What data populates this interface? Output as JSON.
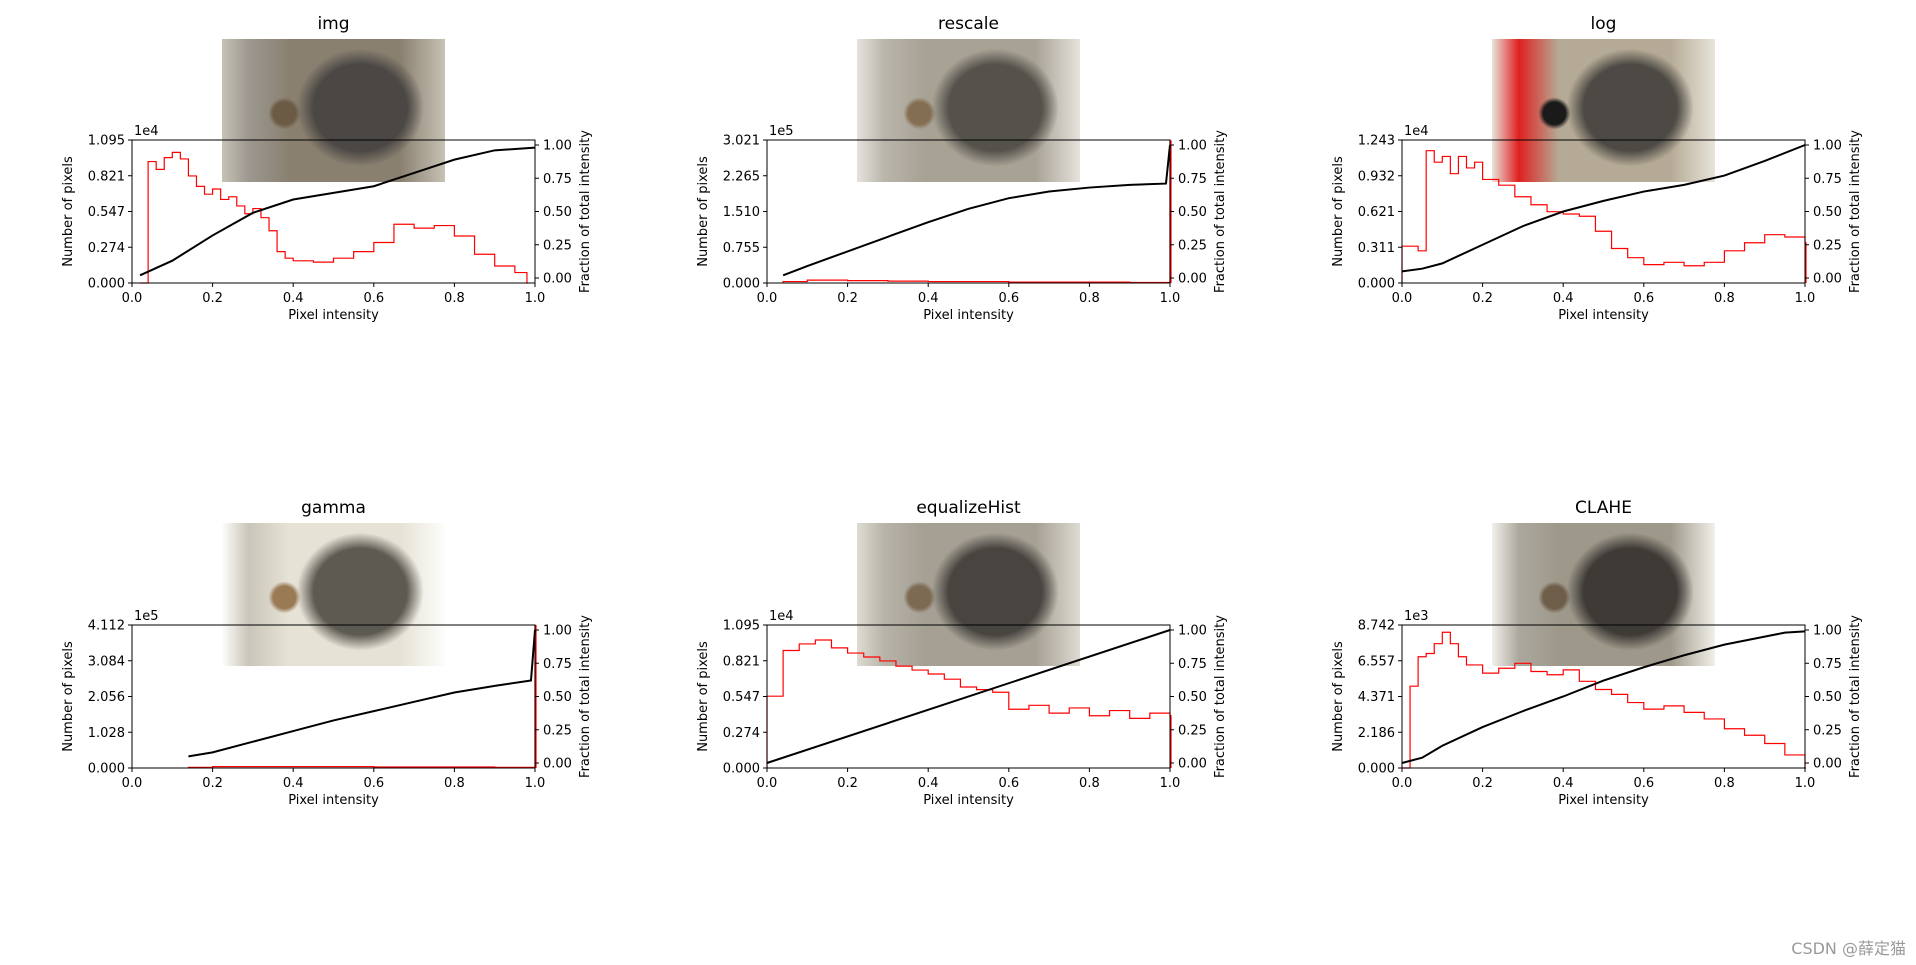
{
  "panels": [
    {
      "title": "img",
      "photo_palette": [
        "#8a8070",
        "#4a4744",
        "#c7c2b5",
        "#6b5a44",
        "#9c9890"
      ],
      "chart_data": {
        "type": "histogram",
        "xlabel": "Pixel intensity",
        "ylabel": "Number of pixels",
        "y2label": "Fraction of total intensity",
        "xlim": [
          0.0,
          1.0
        ],
        "xticks": [
          "0.0",
          "0.2",
          "0.4",
          "0.6",
          "0.8",
          "1.0"
        ],
        "ylim": [
          0,
          1.095
        ],
        "yticks": [
          "0.000",
          "0.274",
          "0.547",
          "0.821",
          "1.095"
        ],
        "yexponent": "1e4",
        "y2ticks": [
          "0.00",
          "0.25",
          "0.50",
          "0.75",
          "1.00"
        ],
        "hist": {
          "x": [
            0.02,
            0.04,
            0.06,
            0.08,
            0.1,
            0.12,
            0.14,
            0.16,
            0.18,
            0.2,
            0.22,
            0.24,
            0.26,
            0.28,
            0.3,
            0.32,
            0.34,
            0.36,
            0.38,
            0.4,
            0.45,
            0.5,
            0.55,
            0.6,
            0.65,
            0.7,
            0.75,
            0.8,
            0.85,
            0.9,
            0.95,
            0.98
          ],
          "y": [
            0.0,
            0.93,
            0.87,
            0.96,
            1.0,
            0.95,
            0.82,
            0.74,
            0.68,
            0.72,
            0.64,
            0.66,
            0.59,
            0.53,
            0.57,
            0.5,
            0.4,
            0.24,
            0.19,
            0.17,
            0.16,
            0.19,
            0.24,
            0.31,
            0.45,
            0.42,
            0.44,
            0.36,
            0.22,
            0.13,
            0.08,
            0.0
          ]
        },
        "cdf": {
          "x": [
            0.02,
            0.1,
            0.2,
            0.3,
            0.4,
            0.5,
            0.6,
            0.7,
            0.8,
            0.9,
            1.0
          ],
          "y": [
            0.02,
            0.13,
            0.32,
            0.49,
            0.59,
            0.64,
            0.69,
            0.79,
            0.89,
            0.96,
            0.98
          ]
        }
      }
    },
    {
      "title": "rescale",
      "photo_palette": [
        "#a8a295",
        "#55524c",
        "#e5e3dc",
        "#846e52",
        "#bab6ac"
      ],
      "chart_data": {
        "type": "histogram",
        "xlabel": "Pixel intensity",
        "ylabel": "Number of pixels",
        "y2label": "Fraction of total intensity",
        "xlim": [
          0.0,
          1.0
        ],
        "xticks": [
          "0.0",
          "0.2",
          "0.4",
          "0.6",
          "0.8",
          "1.0"
        ],
        "ylim": [
          0,
          3.021
        ],
        "yticks": [
          "0.000",
          "0.755",
          "1.510",
          "2.265",
          "3.021"
        ],
        "yexponent": "1e5",
        "y2ticks": [
          "0.00",
          "0.25",
          "0.50",
          "0.75",
          "1.00"
        ],
        "hist": {
          "x": [
            0.04,
            0.1,
            0.2,
            0.3,
            0.4,
            0.5,
            0.6,
            0.7,
            0.8,
            0.9,
            0.99,
            1.0
          ],
          "y": [
            0.03,
            0.06,
            0.05,
            0.04,
            0.03,
            0.03,
            0.02,
            0.02,
            0.02,
            0.01,
            0.01,
            3.0
          ]
        },
        "cdf": {
          "x": [
            0.04,
            0.1,
            0.2,
            0.3,
            0.4,
            0.5,
            0.6,
            0.7,
            0.8,
            0.9,
            0.99,
            1.0
          ],
          "y": [
            0.02,
            0.09,
            0.2,
            0.31,
            0.42,
            0.52,
            0.6,
            0.65,
            0.68,
            0.7,
            0.71,
            1.0
          ]
        }
      }
    },
    {
      "title": "log",
      "photo_palette": [
        "#b5aa95",
        "#4d4a45",
        "#e8e4da",
        "#1a1a1a",
        "#e02020"
      ],
      "chart_data": {
        "type": "histogram",
        "xlabel": "Pixel intensity",
        "ylabel": "Number of pixels",
        "y2label": "Fraction of total intensity",
        "xlim": [
          0.0,
          1.0
        ],
        "xticks": [
          "0.0",
          "0.2",
          "0.4",
          "0.6",
          "0.8",
          "1.0"
        ],
        "ylim": [
          0,
          1.243
        ],
        "yticks": [
          "0.000",
          "0.311",
          "0.621",
          "0.932",
          "1.243"
        ],
        "yexponent": "1e4",
        "y2ticks": [
          "0.00",
          "0.25",
          "0.50",
          "0.75",
          "1.00"
        ],
        "hist": {
          "x": [
            0.0,
            0.04,
            0.06,
            0.08,
            0.1,
            0.12,
            0.14,
            0.16,
            0.18,
            0.2,
            0.24,
            0.28,
            0.32,
            0.36,
            0.4,
            0.44,
            0.48,
            0.52,
            0.56,
            0.6,
            0.65,
            0.7,
            0.75,
            0.8,
            0.85,
            0.9,
            0.95,
            1.0
          ],
          "y": [
            0.32,
            0.28,
            1.15,
            1.05,
            1.1,
            0.95,
            1.1,
            1.0,
            1.05,
            0.9,
            0.85,
            0.75,
            0.68,
            0.62,
            0.6,
            0.58,
            0.45,
            0.3,
            0.22,
            0.16,
            0.18,
            0.15,
            0.18,
            0.28,
            0.35,
            0.42,
            0.4,
            0.35
          ]
        },
        "cdf": {
          "x": [
            0.0,
            0.05,
            0.1,
            0.2,
            0.3,
            0.4,
            0.5,
            0.6,
            0.7,
            0.8,
            0.9,
            1.0
          ],
          "y": [
            0.05,
            0.07,
            0.11,
            0.25,
            0.39,
            0.5,
            0.58,
            0.65,
            0.7,
            0.77,
            0.88,
            1.0
          ]
        }
      }
    },
    {
      "title": "gamma",
      "photo_palette": [
        "#e6e2d6",
        "#5d5a52",
        "#fdfdfb",
        "#9a7a55",
        "#c9c5b9"
      ],
      "chart_data": {
        "type": "histogram",
        "xlabel": "Pixel intensity",
        "ylabel": "Number of pixels",
        "y2label": "Fraction of total intensity",
        "xlim": [
          0.0,
          1.0
        ],
        "xticks": [
          "0.0",
          "0.2",
          "0.4",
          "0.6",
          "0.8",
          "1.0"
        ],
        "ylim": [
          0,
          4.112
        ],
        "yticks": [
          "0.000",
          "1.028",
          "2.056",
          "3.084",
          "4.112"
        ],
        "yexponent": "1e5",
        "y2ticks": [
          "0.00",
          "0.25",
          "0.50",
          "0.75",
          "1.00"
        ],
        "hist": {
          "x": [
            0.14,
            0.2,
            0.3,
            0.4,
            0.5,
            0.6,
            0.7,
            0.8,
            0.9,
            0.99,
            1.0
          ],
          "y": [
            0.02,
            0.04,
            0.04,
            0.04,
            0.04,
            0.03,
            0.03,
            0.03,
            0.02,
            0.02,
            4.1
          ]
        },
        "cdf": {
          "x": [
            0.14,
            0.2,
            0.3,
            0.4,
            0.5,
            0.6,
            0.7,
            0.8,
            0.9,
            0.99,
            1.0
          ],
          "y": [
            0.05,
            0.08,
            0.16,
            0.24,
            0.32,
            0.39,
            0.46,
            0.53,
            0.58,
            0.62,
            1.0
          ]
        }
      }
    },
    {
      "title": "equalizeHist",
      "photo_palette": [
        "#a5a093",
        "#484541",
        "#dedbd2",
        "#7c6a52",
        "#b8b4aa"
      ],
      "chart_data": {
        "type": "histogram",
        "xlabel": "Pixel intensity",
        "ylabel": "Number of pixels",
        "y2label": "Fraction of total intensity",
        "xlim": [
          0.0,
          1.0
        ],
        "xticks": [
          "0.0",
          "0.2",
          "0.4",
          "0.6",
          "0.8",
          "1.0"
        ],
        "ylim": [
          0,
          1.095
        ],
        "yticks": [
          "0.000",
          "0.274",
          "0.547",
          "0.821",
          "1.095"
        ],
        "yexponent": "1e4",
        "y2ticks": [
          "0.00",
          "0.25",
          "0.50",
          "0.75",
          "1.00"
        ],
        "hist": {
          "x": [
            0.0,
            0.04,
            0.08,
            0.12,
            0.16,
            0.2,
            0.24,
            0.28,
            0.32,
            0.36,
            0.4,
            0.44,
            0.48,
            0.52,
            0.56,
            0.6,
            0.65,
            0.7,
            0.75,
            0.8,
            0.85,
            0.9,
            0.95,
            1.0
          ],
          "y": [
            0.55,
            0.9,
            0.95,
            0.98,
            0.92,
            0.88,
            0.85,
            0.82,
            0.78,
            0.75,
            0.72,
            0.68,
            0.62,
            0.6,
            0.58,
            0.45,
            0.48,
            0.42,
            0.46,
            0.4,
            0.44,
            0.38,
            0.42,
            0.4
          ]
        },
        "cdf": {
          "x": [
            0.0,
            1.0
          ],
          "y": [
            0.0,
            1.0
          ]
        }
      }
    },
    {
      "title": "CLAHE",
      "photo_palette": [
        "#9e988a",
        "#3e3b37",
        "#f2f0ea",
        "#6e5d48",
        "#aca89e"
      ],
      "chart_data": {
        "type": "histogram",
        "xlabel": "Pixel intensity",
        "ylabel": "Number of pixels",
        "y2label": "Fraction of total intensity",
        "xlim": [
          0.0,
          1.0
        ],
        "xticks": [
          "0.0",
          "0.2",
          "0.4",
          "0.6",
          "0.8",
          "1.0"
        ],
        "ylim": [
          0,
          8.742
        ],
        "yticks": [
          "0.000",
          "2.186",
          "4.371",
          "6.557",
          "8.742"
        ],
        "yexponent": "1e3",
        "y2ticks": [
          "0.00",
          "0.25",
          "0.50",
          "0.75",
          "1.00"
        ],
        "hist": {
          "x": [
            0.0,
            0.02,
            0.04,
            0.06,
            0.08,
            0.1,
            0.12,
            0.14,
            0.16,
            0.2,
            0.24,
            0.28,
            0.32,
            0.36,
            0.4,
            0.44,
            0.48,
            0.52,
            0.56,
            0.6,
            0.65,
            0.7,
            0.75,
            0.8,
            0.85,
            0.9,
            0.95,
            1.0
          ],
          "y": [
            0.0,
            5.0,
            6.8,
            7.0,
            7.6,
            8.3,
            7.6,
            6.8,
            6.3,
            5.8,
            6.1,
            6.4,
            5.9,
            5.7,
            6.0,
            5.3,
            4.8,
            4.5,
            4.0,
            3.6,
            3.8,
            3.4,
            3.0,
            2.4,
            2.0,
            1.5,
            0.8,
            0.0
          ]
        },
        "cdf": {
          "x": [
            0.0,
            0.05,
            0.1,
            0.2,
            0.3,
            0.4,
            0.5,
            0.6,
            0.7,
            0.8,
            0.9,
            0.95,
            1.0
          ],
          "y": [
            0.0,
            0.04,
            0.13,
            0.27,
            0.39,
            0.5,
            0.62,
            0.72,
            0.81,
            0.89,
            0.95,
            0.98,
            0.99
          ]
        }
      }
    }
  ],
  "watermark": "CSDN @薛定猫",
  "colors": {
    "hist": "#ff0000",
    "cdf": "#000000",
    "axis": "#000000"
  }
}
